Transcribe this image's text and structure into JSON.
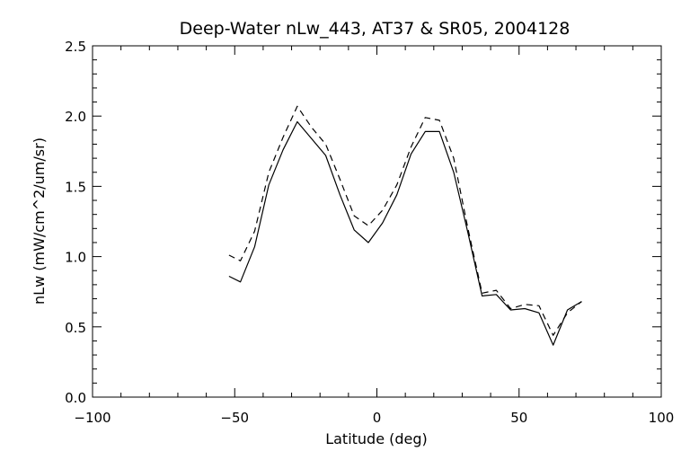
{
  "chart_data": {
    "type": "line",
    "title": "Deep-Water nLw_443, AT37 & SR05, 2004128",
    "xlabel": "Latitude (deg)",
    "ylabel": "nLw (mW/cm^2/um/sr)",
    "xlim": [
      -100,
      100
    ],
    "ylim": [
      0.0,
      2.5
    ],
    "x_ticks": [
      -100,
      -50,
      0,
      50,
      100
    ],
    "x_tick_labels": [
      "−100",
      "−50",
      "0",
      "50",
      "100"
    ],
    "y_ticks": [
      0.0,
      0.5,
      1.0,
      1.5,
      2.0,
      2.5
    ],
    "y_tick_labels": [
      "0.0",
      "0.5",
      "1.0",
      "1.5",
      "2.0",
      "2.5"
    ],
    "grid": false,
    "line_color": "#000000",
    "series": [
      {
        "style": "solid",
        "x": [
          -52,
          -48,
          -43,
          -38,
          -33,
          -28,
          -23,
          -18,
          -13,
          -8,
          -3,
          2,
          7,
          12,
          17,
          22,
          27,
          32,
          37,
          42,
          47,
          52,
          57,
          62,
          67,
          72
        ],
        "y": [
          0.86,
          0.82,
          1.07,
          1.51,
          1.76,
          1.96,
          1.84,
          1.72,
          1.44,
          1.19,
          1.1,
          1.24,
          1.44,
          1.73,
          1.89,
          1.89,
          1.6,
          1.17,
          0.72,
          0.73,
          0.62,
          0.63,
          0.6,
          0.37,
          0.62,
          0.68
        ]
      },
      {
        "style": "dashed",
        "x": [
          -52,
          -48,
          -43,
          -38,
          -33,
          -28,
          -23,
          -18,
          -13,
          -8,
          -3,
          2,
          7,
          12,
          17,
          22,
          27,
          32,
          37,
          42,
          47,
          52,
          57,
          62,
          67,
          72
        ],
        "y": [
          1.01,
          0.97,
          1.18,
          1.6,
          1.85,
          2.07,
          1.92,
          1.8,
          1.55,
          1.29,
          1.22,
          1.33,
          1.51,
          1.78,
          1.99,
          1.97,
          1.7,
          1.2,
          0.74,
          0.76,
          0.63,
          0.66,
          0.65,
          0.44,
          0.6,
          0.68
        ]
      }
    ]
  }
}
